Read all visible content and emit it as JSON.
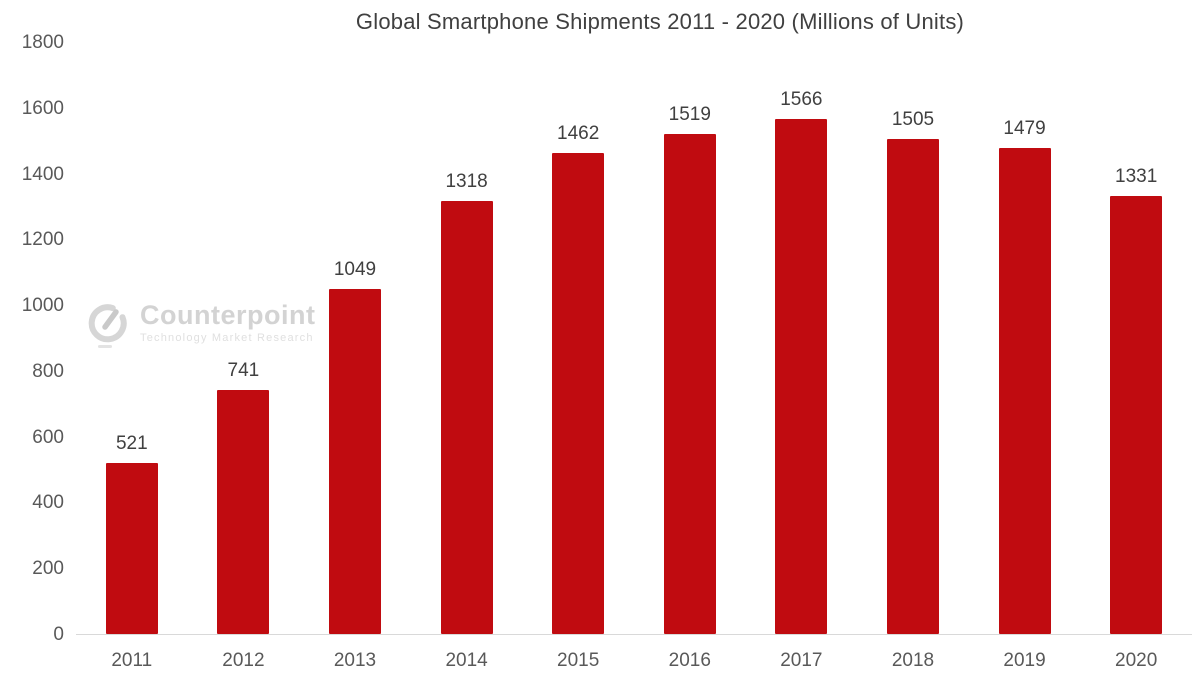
{
  "chart_data": {
    "type": "bar",
    "title": "Global Smartphone Shipments 2011 - 2020 (Millions of Units)",
    "categories": [
      "2011",
      "2012",
      "2013",
      "2014",
      "2015",
      "2016",
      "2017",
      "2018",
      "2019",
      "2020"
    ],
    "values": [
      521,
      741,
      1049,
      1318,
      1462,
      1519,
      1566,
      1505,
      1479,
      1331
    ],
    "xlabel": "",
    "ylabel": "",
    "ylim": [
      0,
      1800
    ],
    "yticks": [
      0,
      200,
      400,
      600,
      800,
      1000,
      1200,
      1400,
      1600,
      1800
    ],
    "grid": false,
    "legend": "none",
    "bar_color": "#c00b10",
    "axis_line_color": "#d9d9d9",
    "label_color": "#404040",
    "tick_color": "#595959"
  },
  "watermark": {
    "brand": "Counterpoint",
    "tagline": "Technology Market Research",
    "color": "#d3d3d3"
  }
}
